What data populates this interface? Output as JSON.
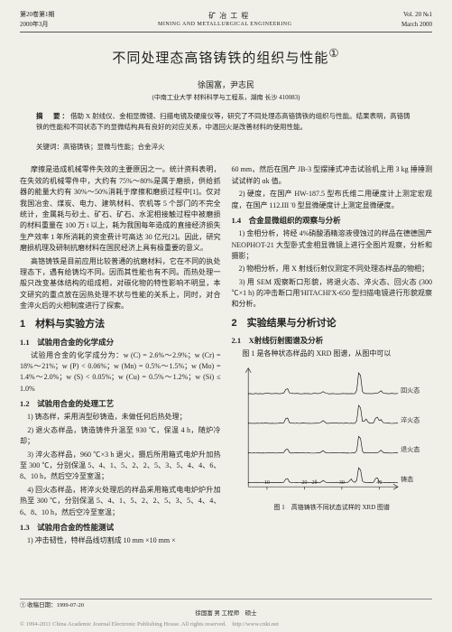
{
  "header": {
    "issue_cn": "第20卷第1期",
    "date_cn": "2000年3月",
    "journal_cn": "矿 冶 工 程",
    "journal_en": "MINING AND METALLURGICAL ENGINEERING",
    "vol_en": "Vol. 20  №1",
    "date_en": "March 2000"
  },
  "article": {
    "title": "不同处理态高铬铸铁的组织与性能",
    "superscript": "①",
    "authors": "徐国富，尹志民",
    "affiliation": "(中南工业大学 材料科学与工程系，湖南 长沙 410083)",
    "abstract_label": "摘　要：",
    "abstract": "借助 X 射线仪、金相显微镜、扫描电镜及硬度仪等，研究了不同处理态高铬铸铁的组织与性能。结果表明，高铬铸铁的性能和不同状态下的显微结构具有良好的对应关系，中温回火是改善材料的使用性能。",
    "keywords_label": "关键词：",
    "keywords": "高铬铸铁；显微与性能；合金淬火"
  },
  "left": {
    "p1": "摩擦是造成机械零件失效的主要原因之一。统计资料表明，在失效的机械零件中，大约有 75%～80%是属于磨损，供给抓器的能量大约有 30%～50%消耗于摩擦和磨损过程中[1]。仅对我国冶金、煤炭、电力、建筑材料、农机等 5 个部门的不完全统计，金属耗与砂土、矿石、矿石、水泥相接触过程中被磨损的材料重量在 100 万 t 以上，耗为我国每年造成的直接经济损失生产效率 1 年所消耗的资金费计可高达 30 亿元[2]。因此，研究磨损机理及研制抗磨材料在国民经济上具有极重要的意义。",
    "p2": "高铬铸铁是目前应用比较普通的抗磨材料，它在不同的执处理态下，遇有给铸均不同。因而其性能也有不同。而热处理一般只改变基体结构的组成相，对碳化物的特性影响不明显，本文研究的重点放在因热处理不状与性能的关系上，同时，对合金淬火后的火相制度进行了探索。"
  },
  "sec1": {
    "title": "1　材料与实验方法",
    "s11": "1.1　试验用合金的化学成分",
    "s11_body": "试验用合金的化学成分为：w (C) = 2.6%～2.9%；w (Cr) = 18%～21%；w (P) < 0.06%；w (Mn) = 0.5%～1.5%；w (Mo) = 1.4%～2.0%；w (S) < 0.05%；w (Cu) = 0.5%～1.2%；w (Si) ≤ 1.0%",
    "s12": "1.2　试验用合金的处理工艺",
    "s12_1": "　1) 铸态样，采用消型砂铸造，未做任何后热处理；",
    "s12_2": "　2) 退火态样品，铸造铸件升温至 930 ℃，保温 4 h，随炉冷却；",
    "s12_3": "　3) 淬火态样品，960 ℃×3 h 退火，摄后所用箱式电炉升加热至 300 ℃，分别保温 5、4、1、5、2、2、5、3、5、4、4、6、8、10 h，然后空冷至室温；",
    "s12_4": "　4) 回火态样品，将淬火处理后的样品采用箱式电电炉炉升加热至 300 ℃，分别保温 5、4、1、5、2、2、5、3、5、4、4、6、8、10 h，然后空冷至室温；",
    "s13": "1.3　试验用合金的性能测试",
    "s13_1": "　1) 冲击韧性，特样品线切割成 10 mm ×10 mm ×"
  },
  "right": {
    "p1": "60 mm，然后在国产 JB-3 型摆捶式冲击试验机上用 3 kg 捶捶测试试样的 ɑk 值。",
    "p2": "　2) 硬度，在国产 HW-187.5 型布氏维二用硬度计上测定宏观度，在国产 112.III '0 型显微硬度计上测定显微硬度。",
    "s14": "1.4　合金显微组织的观察与分析",
    "p3": "　1) 金相分析，将经 4%硝酸酒精溶液侵蚀过的样品在德德国产 NEOPHOT-21 大型卧式金相显微镜上进行全图片观察，分析和摄影；",
    "p4": "　2) 物相分析，用 X 射线衍射仪测定不同处理态样品的物相；",
    "p5": "　3) 用 SEM 观察断口形貌，将退火态、淬火态、回火态 (300 ℃×1 h) 的冲击断口用'HITACHI'X-650 型扫描电镜进行形貌观察和分析。"
  },
  "sec2": {
    "title": "2　实验结果与分析讨论",
    "s21": "2.1　X射线衍射图谱及分析",
    "p1": "图 1 是各种状态样品的 XRD 图谱，从图中可以"
  },
  "chart": {
    "caption": "图 1　高铬铸铁不同状态试样的 XRD 图谱",
    "x_ticks": [
      "10",
      "20",
      "30",
      "40"
    ],
    "x_label": "2θ",
    "traces": [
      {
        "label": "回火态",
        "peaks": [
          [
            18,
            8
          ],
          [
            35,
            3
          ],
          [
            52,
            35
          ],
          [
            62,
            4
          ]
        ]
      },
      {
        "label": "淬火态",
        "peaks": [
          [
            18,
            9
          ],
          [
            35,
            4
          ],
          [
            52,
            30
          ],
          [
            55,
            6
          ],
          [
            60,
            10
          ],
          [
            62,
            5
          ]
        ]
      },
      {
        "label": "退火态",
        "peaks": [
          [
            18,
            6
          ],
          [
            35,
            3
          ],
          [
            52,
            28
          ],
          [
            62,
            4
          ]
        ]
      },
      {
        "label": "铸态",
        "peaks": [
          [
            18,
            7
          ],
          [
            35,
            3
          ],
          [
            48,
            5
          ],
          [
            52,
            25
          ],
          [
            60,
            8
          ]
        ]
      }
    ],
    "colors": {
      "line": "#000000",
      "axis": "#333333",
      "bg": "#f0f0e8"
    }
  },
  "footer": {
    "received": "① 收稿日期：1999-07-20",
    "author_info": "徐国富 男 工程师　硕士",
    "bottom": "© 1994-2011 China Academic Journal Electronic Publishing House. All rights reserved.　http://www.cnki.net"
  }
}
